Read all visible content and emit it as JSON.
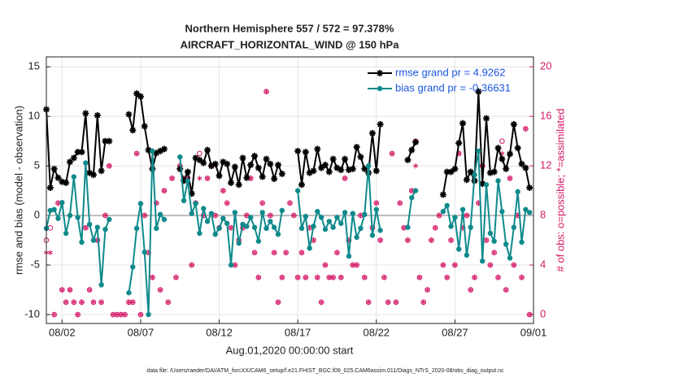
{
  "chart_data": {
    "type": "line",
    "title": "Northern Hemisphere 557 / 572 = 97.378%",
    "subtitle": "AIRCRAFT_HORIZONTAL_WIND @ 150 hPa",
    "ylabel": "rmse and bias (model - observation)",
    "y2label": "# of obs: o=possible; *=assimilated",
    "xlabel": "Aug.01,2020 00:00:00 start",
    "footnote": "data file: /Users/raeder/DAI/ATM_forcXX/CAM6_setup/f.e21.FHIST_BGC.f09_025.CAM6assim.011/Diags_NTrS_2020-08/obs_diag_output.nc",
    "xlim": [
      0,
      31
    ],
    "xticks": [
      {
        "value": 1,
        "label": "08/02"
      },
      {
        "value": 6,
        "label": "08/07"
      },
      {
        "value": 11,
        "label": "08/12"
      },
      {
        "value": 16,
        "label": "08/17"
      },
      {
        "value": 21,
        "label": "08/22"
      },
      {
        "value": 26,
        "label": "08/27"
      },
      {
        "value": 31,
        "label": "09/01"
      }
    ],
    "ylim": [
      -10.9,
      16
    ],
    "yticks": [
      -10,
      -5,
      0,
      5,
      10,
      15
    ],
    "y2lim": [
      -0.72,
      20.8
    ],
    "y2ticks": [
      0,
      4,
      8,
      12,
      16,
      20
    ],
    "grid": true,
    "legend": "upper right",
    "x": [
      0,
      0.25,
      0.5,
      0.75,
      1,
      1.25,
      1.5,
      1.75,
      2,
      2.25,
      2.5,
      2.75,
      3,
      3.25,
      3.5,
      3.75,
      4,
      4.25,
      4.5,
      4.75,
      5,
      5.25,
      5.5,
      5.75,
      6,
      6.25,
      6.5,
      6.75,
      7,
      7.25,
      7.5,
      7.75,
      8,
      8.25,
      8.5,
      8.75,
      9,
      9.25,
      9.5,
      9.75,
      10,
      10.25,
      10.5,
      10.75,
      11,
      11.25,
      11.5,
      11.75,
      12,
      12.25,
      12.5,
      12.75,
      13,
      13.25,
      13.5,
      13.75,
      14,
      14.25,
      14.5,
      14.75,
      15,
      15.25,
      15.5,
      15.75,
      16,
      16.25,
      16.5,
      16.75,
      17,
      17.25,
      17.5,
      17.75,
      18,
      18.25,
      18.5,
      18.75,
      19,
      19.25,
      19.5,
      19.75,
      20,
      20.25,
      20.5,
      20.75,
      21,
      21.25,
      21.5,
      21.75,
      22,
      22.25,
      22.5,
      22.75,
      23,
      23.25,
      23.5,
      23.75,
      24,
      24.25,
      24.5,
      24.75,
      25,
      25.25,
      25.5,
      25.75,
      26,
      26.25,
      26.5,
      26.75,
      27,
      27.25,
      27.5,
      27.75,
      28,
      28.25,
      28.5,
      28.75,
      29,
      29.25,
      29.5,
      29.75,
      30,
      30.25,
      30.5,
      30.75
    ],
    "series": [
      {
        "name": "rmse grand pr = 4.9262",
        "color": "#000000",
        "marker": "star",
        "values": [
          10.7,
          2.8,
          4.7,
          3.8,
          3.4,
          3.3,
          5.4,
          5.8,
          6.4,
          6.4,
          10.3,
          4.3,
          4.1,
          10.1,
          4.5,
          7.5,
          7.5,
          null,
          null,
          null,
          null,
          10.2,
          8.6,
          12.3,
          12.0,
          9.0,
          6.6,
          4.7,
          6.3,
          6.5,
          6.7,
          null,
          null,
          null,
          4.7,
          3.5,
          4.4,
          2.2,
          5.8,
          5.6,
          5.3,
          6.6,
          5.0,
          5.2,
          4.0,
          5.4,
          5.2,
          3.3,
          4.9,
          3.1,
          5.8,
          3.8,
          5.1,
          6.0,
          4.8,
          3.9,
          5.7,
          5.2,
          3.7,
          5.1,
          4.2,
          null,
          null,
          null,
          6.5,
          3.1,
          6.4,
          4.3,
          4.5,
          6.7,
          4.8,
          5.1,
          4.4,
          5.7,
          4.8,
          4.6,
          5.7,
          4.6,
          4.7,
          6.9,
          5.9,
          4.7,
          4.3,
          8.3,
          4.5,
          9.2,
          null,
          null,
          null,
          null,
          null,
          null,
          5.6,
          6.6,
          7.4,
          null,
          null,
          null,
          null,
          null,
          null,
          2.1,
          4.4,
          4.4,
          4.7,
          7.3,
          9.3,
          3.6,
          4.4,
          3.5,
          12.5,
          3.2,
          9.8,
          4.3,
          4.4,
          6.8,
          5.7,
          4.7,
          6.2,
          9.2,
          6.8,
          5.2,
          4.8,
          2.8
        ]
      },
      {
        "name": "bias grand pr = -0.36631",
        "color": "#0f8a8c",
        "marker": "circle",
        "values": [
          -1.3,
          0.5,
          0.6,
          -0.3,
          1.3,
          -1.8,
          0.0,
          3.9,
          -0.2,
          -2.7,
          5.3,
          -0.9,
          -2.5,
          -1.2,
          -7.0,
          -1.4,
          -0.4,
          null,
          null,
          null,
          null,
          -7.8,
          -5.2,
          -1.3,
          1.2,
          -3.7,
          -10.0,
          6.5,
          -1.3,
          0.1,
          -0.4,
          null,
          null,
          null,
          5.9,
          1.5,
          3.5,
          0.2,
          1.2,
          -1.8,
          0.7,
          -0.6,
          0.2,
          -1.9,
          -1.3,
          -0.3,
          -0.8,
          -5.0,
          0.3,
          -2.8,
          -0.9,
          -1.1,
          -0.2,
          -1.2,
          -2.6,
          0.3,
          -1.3,
          -0.6,
          -1.2,
          -1.9,
          0.5,
          null,
          null,
          null,
          2.5,
          -1.3,
          -0.1,
          -3.3,
          -1.1,
          0.4,
          -0.2,
          -1.4,
          -0.6,
          -1.2,
          -0.2,
          -0.8,
          0.3,
          -4.1,
          0.2,
          -2.2,
          -1.3,
          0.1,
          5.0,
          -2.0,
          0.6,
          -1.5,
          null,
          null,
          null,
          null,
          null,
          null,
          -1.2,
          1.8,
          2.5,
          null,
          null,
          null,
          null,
          null,
          null,
          0.4,
          1.0,
          -1.1,
          -0.2,
          -3.4,
          0.6,
          -4.0,
          -1.2,
          4.1,
          6.5,
          -4.6,
          3.1,
          -1.8,
          -2.6,
          3.5,
          0.4,
          -2.9,
          -4.3,
          -1.2,
          2.4,
          -2.7,
          0.6,
          0.3
        ]
      }
    ],
    "obs_color": "#d41866",
    "possible": [
      6,
      7,
      0,
      9,
      2,
      1,
      2,
      1,
      0,
      1,
      7,
      2,
      1,
      6,
      1,
      8,
      12,
      0,
      0,
      0,
      0,
      1,
      1,
      13,
      0,
      8,
      5,
      3,
      9,
      2,
      10,
      1,
      11,
      3,
      12,
      11,
      11,
      4,
      9,
      13,
      8,
      11,
      12,
      8,
      7,
      10,
      9,
      7,
      4,
      6,
      7,
      8,
      11,
      5,
      3,
      9,
      18,
      8,
      5,
      1,
      3,
      5,
      9,
      8,
      3,
      5,
      3,
      7,
      6,
      3,
      1,
      4,
      3,
      3,
      5,
      3,
      11,
      6,
      4,
      4,
      8,
      3,
      1,
      7,
      9,
      6,
      3,
      1,
      13,
      1,
      9,
      7,
      6,
      10,
      14,
      3,
      1,
      2,
      6,
      7,
      8,
      4,
      3,
      6,
      4,
      13,
      7,
      8,
      2,
      3,
      9,
      12,
      6,
      4,
      5,
      3,
      14,
      2,
      11,
      4,
      8,
      3,
      15,
      0
    ],
    "assimilated": [
      5,
      5,
      0,
      9,
      2,
      1,
      2,
      1,
      0,
      1,
      7,
      2,
      1,
      6,
      1,
      8,
      12,
      0,
      0,
      0,
      0,
      1,
      1,
      13,
      0,
      8,
      5,
      3,
      9,
      2,
      10,
      1,
      11,
      3,
      12,
      11,
      11,
      4,
      9,
      11,
      8,
      11,
      12,
      8,
      7,
      10,
      9,
      7,
      4,
      6,
      7,
      8,
      11,
      5,
      3,
      9,
      18,
      8,
      5,
      1,
      3,
      5,
      9,
      8,
      3,
      5,
      3,
      7,
      6,
      3,
      1,
      4,
      3,
      3,
      5,
      3,
      11,
      6,
      4,
      4,
      8,
      3,
      1,
      7,
      9,
      6,
      3,
      1,
      13,
      1,
      9,
      7,
      6,
      10,
      12,
      3,
      1,
      2,
      6,
      7,
      8,
      4,
      3,
      6,
      4,
      13,
      7,
      8,
      2,
      3,
      9,
      12,
      6,
      4,
      5,
      3,
      13,
      2,
      11,
      4,
      8,
      3,
      15,
      0
    ]
  }
}
